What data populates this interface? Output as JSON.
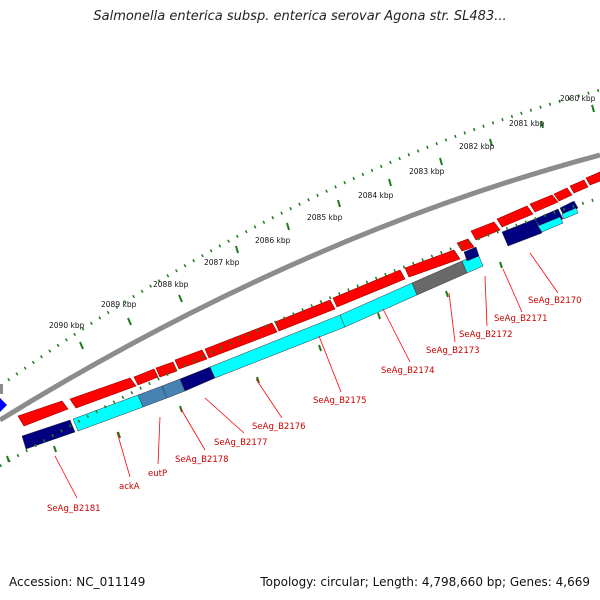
{
  "title": "Salmonella enterica subsp. enterica serovar Agona str. SL483...",
  "footer": {
    "accession": "Accession: NC_011149",
    "summary": "Topology: circular; Length: 4,798,660 bp; Genes: 4,669"
  },
  "kbp_ticks": [
    "2080 kbp",
    "2081 kbp",
    "2082 kbp",
    "2083 kbp",
    "2084 kbp",
    "2085 kbp",
    "2086 kbp",
    "2087 kbp",
    "2088 kbp",
    "2089 kbp",
    "2090 kbp"
  ],
  "gene_labels": [
    "SeAg_B2170",
    "SeAg_B2171",
    "SeAg_B2172",
    "SeAg_B2173",
    "SeAg_B2174",
    "SeAg_B2175",
    "SeAg_B2176",
    "SeAg_B2177",
    "SeAg_B2178",
    "eutP",
    "ackA",
    "SeAg_B2181"
  ],
  "colors": {
    "cds": "#ff0000",
    "gene": "#000080",
    "misc": "#00ffff",
    "steel": "#4682b4",
    "grey_feature": "#696969",
    "backbone": "#8c8c8c",
    "ruler": "#1f7a1f",
    "label": "#cc0000",
    "pointer": "#0000ff"
  }
}
